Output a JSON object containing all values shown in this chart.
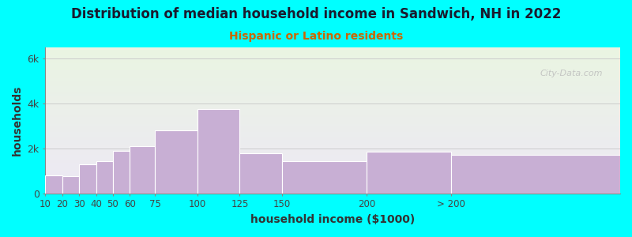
{
  "title": "Distribution of median household income in Sandwich, NH in 2022",
  "subtitle": "Hispanic or Latino residents",
  "xlabel": "household income ($1000)",
  "ylabel": "households",
  "background_color": "#00FFFF",
  "plot_bg_top": "#eaf5e2",
  "plot_bg_bottom": "#ede8f5",
  "bar_color": "#c8afd4",
  "bar_edge_color": "#ffffff",
  "title_color": "#1a1a2e",
  "subtitle_color": "#cc6600",
  "axis_label_color": "#333333",
  "tick_label_color": "#444444",
  "bar_left_edges": [
    10,
    20,
    30,
    40,
    50,
    60,
    75,
    100,
    125,
    150,
    200,
    250
  ],
  "bar_widths": [
    10,
    10,
    10,
    10,
    10,
    15,
    25,
    25,
    25,
    50,
    50,
    100
  ],
  "values": [
    800,
    750,
    1300,
    1450,
    1900,
    2100,
    2800,
    3750,
    1800,
    1450,
    1850,
    1700
  ],
  "ylim": [
    0,
    6500
  ],
  "ytick_vals": [
    0,
    2000,
    4000,
    6000
  ],
  "ytick_labels": [
    "0",
    "2k",
    "4k",
    "6k"
  ],
  "xtick_positions": [
    10,
    20,
    30,
    40,
    50,
    60,
    75,
    100,
    125,
    150,
    200,
    250
  ],
  "xtick_labels": [
    "10",
    "20",
    "30",
    "40",
    "50",
    "60",
    "75",
    "100",
    "125",
    "150",
    "200",
    "> 200"
  ],
  "xlim": [
    10,
    350
  ],
  "figsize": [
    8.0,
    3.0
  ],
  "dpi": 100
}
